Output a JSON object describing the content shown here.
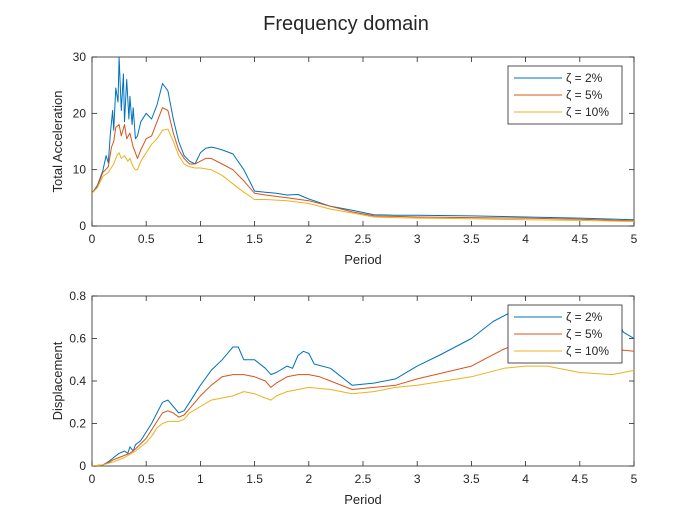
{
  "figure_title": "Frequency domain",
  "colors": {
    "zeta2": "#0072BD",
    "zeta5": "#D95319",
    "zeta10": "#EDB120",
    "axis": "#262626"
  },
  "chart_data": [
    {
      "type": "line",
      "title": "",
      "xlabel": "Period",
      "ylabel": "Total Acceleration",
      "xlim": [
        0,
        5
      ],
      "ylim": [
        0,
        30
      ],
      "xticks": [
        "0",
        "0.5",
        "1",
        "1.5",
        "2",
        "2.5",
        "3",
        "3.5",
        "4",
        "4.5",
        "5"
      ],
      "yticks": [
        "0",
        "10",
        "20",
        "30"
      ],
      "grid": false,
      "legend_position": "top-right",
      "series": [
        {
          "name": "ζ = 2%",
          "color": "#0072BD",
          "x": [
            0,
            0.05,
            0.1,
            0.13,
            0.15,
            0.17,
            0.19,
            0.2,
            0.22,
            0.24,
            0.25,
            0.27,
            0.29,
            0.3,
            0.32,
            0.34,
            0.35,
            0.37,
            0.38,
            0.4,
            0.42,
            0.45,
            0.5,
            0.55,
            0.6,
            0.65,
            0.7,
            0.75,
            0.8,
            0.85,
            0.9,
            0.95,
            1.0,
            1.05,
            1.1,
            1.15,
            1.2,
            1.3,
            1.4,
            1.5,
            1.6,
            1.7,
            1.8,
            1.9,
            2.0,
            2.2,
            2.4,
            2.6,
            2.8,
            3.0,
            3.5,
            4.0,
            4.5,
            5.0
          ],
          "y": [
            5.8,
            7.2,
            9.8,
            12.5,
            11.2,
            16.5,
            20.5,
            17.0,
            24.5,
            22.0,
            30.0,
            20.5,
            27.0,
            18.5,
            26.0,
            19.0,
            23.0,
            18.0,
            21.0,
            15.5,
            16.0,
            18.5,
            20.0,
            19.0,
            21.5,
            25.3,
            24.0,
            19.0,
            15.0,
            12.5,
            11.5,
            11.0,
            13.0,
            13.8,
            14.0,
            13.8,
            13.5,
            12.8,
            10.0,
            6.2,
            6.0,
            5.8,
            5.5,
            5.6,
            4.8,
            3.5,
            2.8,
            2.0,
            1.9,
            1.9,
            1.8,
            1.6,
            1.4,
            1.1
          ]
        },
        {
          "name": "ζ = 5%",
          "color": "#D95319",
          "x": [
            0,
            0.05,
            0.1,
            0.15,
            0.18,
            0.2,
            0.22,
            0.25,
            0.27,
            0.3,
            0.32,
            0.35,
            0.38,
            0.4,
            0.42,
            0.45,
            0.5,
            0.55,
            0.6,
            0.65,
            0.7,
            0.75,
            0.8,
            0.85,
            0.9,
            0.95,
            1.0,
            1.05,
            1.1,
            1.2,
            1.3,
            1.4,
            1.5,
            1.6,
            1.8,
            2.0,
            2.2,
            2.4,
            2.6,
            2.8,
            3.0,
            3.5,
            4.0,
            4.5,
            5.0
          ],
          "y": [
            5.8,
            7.0,
            9.5,
            10.5,
            14.0,
            15.0,
            17.5,
            18.0,
            16.0,
            18.0,
            15.5,
            16.5,
            14.0,
            13.0,
            12.0,
            13.5,
            15.5,
            16.0,
            18.5,
            21.0,
            20.5,
            16.5,
            13.5,
            12.0,
            11.0,
            11.0,
            11.5,
            12.0,
            12.0,
            11.0,
            10.0,
            8.0,
            5.8,
            5.5,
            5.0,
            4.5,
            3.5,
            2.5,
            1.8,
            1.7,
            1.6,
            1.5,
            1.4,
            1.2,
            0.9
          ]
        },
        {
          "name": "ζ = 10%",
          "color": "#EDB120",
          "x": [
            0,
            0.05,
            0.1,
            0.15,
            0.2,
            0.23,
            0.25,
            0.27,
            0.3,
            0.33,
            0.35,
            0.38,
            0.4,
            0.42,
            0.45,
            0.5,
            0.55,
            0.6,
            0.65,
            0.7,
            0.75,
            0.8,
            0.85,
            0.9,
            0.95,
            1.0,
            1.1,
            1.2,
            1.3,
            1.4,
            1.5,
            1.6,
            1.8,
            2.0,
            2.2,
            2.4,
            2.6,
            2.8,
            3.0,
            3.5,
            4.0,
            4.5,
            5.0
          ],
          "y": [
            5.8,
            6.8,
            8.8,
            9.5,
            11.0,
            12.5,
            13.0,
            12.0,
            12.5,
            11.5,
            12.0,
            10.5,
            10.0,
            10.0,
            11.5,
            13.0,
            14.5,
            15.5,
            17.0,
            17.2,
            15.0,
            12.5,
            11.0,
            10.5,
            10.3,
            10.3,
            10.0,
            9.0,
            7.5,
            6.0,
            4.7,
            4.7,
            4.5,
            4.0,
            3.0,
            2.3,
            1.6,
            1.5,
            1.4,
            1.3,
            1.1,
            1.0,
            0.8
          ]
        }
      ]
    },
    {
      "type": "line",
      "title": "",
      "xlabel": "Period",
      "ylabel": "Displacement",
      "xlim": [
        0,
        5
      ],
      "ylim": [
        0,
        0.8
      ],
      "xticks": [
        "0",
        "0.5",
        "1",
        "1.5",
        "2",
        "2.5",
        "3",
        "3.5",
        "4",
        "4.5",
        "5"
      ],
      "yticks": [
        "0",
        "0.2",
        "0.4",
        "0.6",
        "0.8"
      ],
      "grid": false,
      "legend_position": "top-right",
      "series": [
        {
          "name": "ζ = 2%",
          "color": "#0072BD",
          "x": [
            0,
            0.1,
            0.15,
            0.2,
            0.25,
            0.3,
            0.33,
            0.35,
            0.38,
            0.4,
            0.45,
            0.5,
            0.55,
            0.6,
            0.65,
            0.7,
            0.75,
            0.8,
            0.85,
            0.9,
            1.0,
            1.1,
            1.2,
            1.25,
            1.3,
            1.35,
            1.4,
            1.5,
            1.6,
            1.65,
            1.7,
            1.8,
            1.85,
            1.9,
            1.95,
            2.0,
            2.05,
            2.2,
            2.4,
            2.6,
            2.8,
            3.0,
            3.2,
            3.5,
            3.7,
            3.85,
            4.0,
            4.2,
            4.4,
            4.6,
            4.8,
            4.9,
            5.0
          ],
          "y": [
            0,
            0.005,
            0.02,
            0.04,
            0.06,
            0.07,
            0.06,
            0.09,
            0.07,
            0.1,
            0.12,
            0.16,
            0.2,
            0.25,
            0.3,
            0.31,
            0.28,
            0.25,
            0.26,
            0.3,
            0.38,
            0.45,
            0.5,
            0.53,
            0.56,
            0.56,
            0.5,
            0.5,
            0.46,
            0.43,
            0.44,
            0.47,
            0.46,
            0.52,
            0.54,
            0.53,
            0.48,
            0.46,
            0.38,
            0.39,
            0.41,
            0.47,
            0.52,
            0.6,
            0.68,
            0.72,
            0.74,
            0.72,
            0.7,
            0.73,
            0.75,
            0.63,
            0.6
          ]
        },
        {
          "name": "ζ = 5%",
          "color": "#D95319",
          "x": [
            0,
            0.1,
            0.15,
            0.2,
            0.3,
            0.35,
            0.4,
            0.5,
            0.55,
            0.6,
            0.65,
            0.7,
            0.75,
            0.8,
            0.85,
            0.9,
            1.0,
            1.1,
            1.2,
            1.3,
            1.4,
            1.5,
            1.6,
            1.65,
            1.7,
            1.8,
            1.9,
            2.0,
            2.1,
            2.2,
            2.4,
            2.6,
            2.8,
            3.0,
            3.5,
            3.8,
            4.0,
            4.2,
            4.5,
            4.8,
            5.0
          ],
          "y": [
            0,
            0.005,
            0.015,
            0.03,
            0.05,
            0.06,
            0.08,
            0.13,
            0.17,
            0.21,
            0.25,
            0.26,
            0.25,
            0.23,
            0.24,
            0.27,
            0.33,
            0.38,
            0.42,
            0.43,
            0.43,
            0.42,
            0.4,
            0.37,
            0.39,
            0.42,
            0.43,
            0.43,
            0.42,
            0.4,
            0.36,
            0.37,
            0.38,
            0.41,
            0.47,
            0.55,
            0.59,
            0.6,
            0.6,
            0.55,
            0.54
          ]
        },
        {
          "name": "ζ = 10%",
          "color": "#EDB120",
          "x": [
            0,
            0.1,
            0.2,
            0.3,
            0.4,
            0.5,
            0.55,
            0.6,
            0.65,
            0.7,
            0.75,
            0.8,
            0.85,
            0.9,
            1.0,
            1.1,
            1.2,
            1.3,
            1.4,
            1.5,
            1.6,
            1.65,
            1.7,
            1.8,
            1.9,
            2.0,
            2.2,
            2.4,
            2.6,
            2.8,
            3.0,
            3.5,
            3.8,
            4.0,
            4.2,
            4.5,
            4.8,
            5.0
          ],
          "y": [
            0,
            0.005,
            0.02,
            0.04,
            0.07,
            0.11,
            0.14,
            0.18,
            0.2,
            0.21,
            0.21,
            0.21,
            0.22,
            0.25,
            0.28,
            0.31,
            0.32,
            0.33,
            0.35,
            0.34,
            0.32,
            0.31,
            0.33,
            0.35,
            0.36,
            0.37,
            0.36,
            0.34,
            0.35,
            0.37,
            0.38,
            0.42,
            0.46,
            0.47,
            0.47,
            0.44,
            0.43,
            0.45
          ]
        }
      ]
    }
  ]
}
